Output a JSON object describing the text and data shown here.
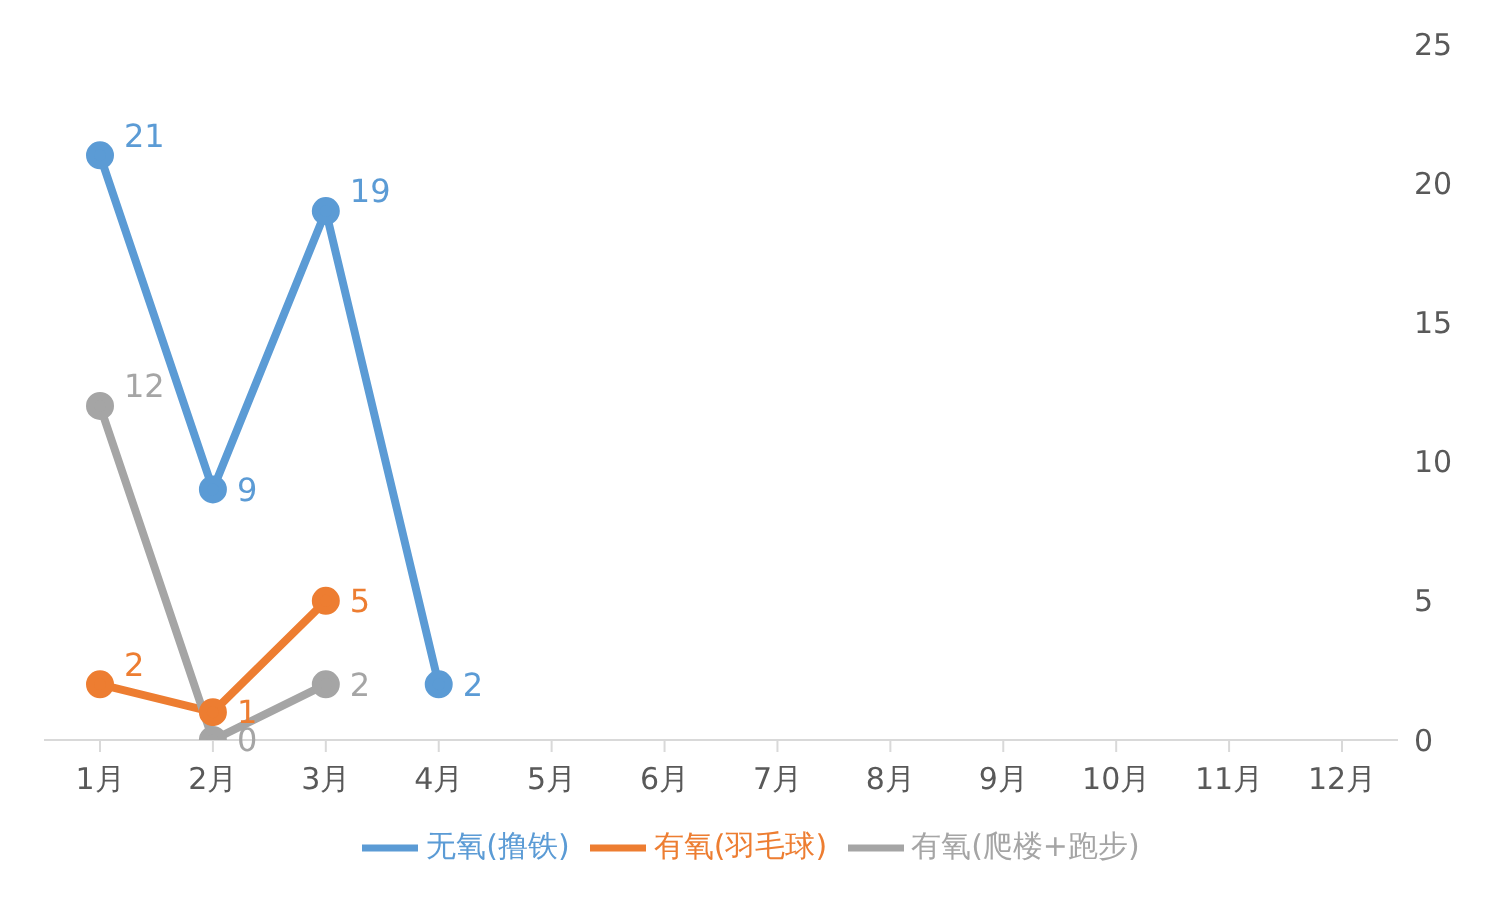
{
  "chart_data": {
    "type": "line",
    "categories": [
      "1月",
      "2月",
      "3月",
      "4月",
      "5月",
      "6月",
      "7月",
      "8月",
      "9月",
      "10月",
      "11月",
      "12月"
    ],
    "series": [
      {
        "name": "无氧(撸铁)",
        "color": "#5b9bd5",
        "values": [
          21,
          9,
          19,
          2,
          null,
          null,
          null,
          null,
          null,
          null,
          null,
          null
        ]
      },
      {
        "name": "有氧(羽毛球)",
        "color": "#ed7d31",
        "values": [
          2,
          1,
          5,
          null,
          null,
          null,
          null,
          null,
          null,
          null,
          null,
          null
        ]
      },
      {
        "name": "有氧(爬楼+跑步)",
        "color": "#a5a5a5",
        "values": [
          12,
          0,
          2,
          null,
          null,
          null,
          null,
          null,
          null,
          null,
          null,
          null
        ]
      }
    ],
    "ylim": [
      0,
      25
    ],
    "yticks": [
      0,
      5,
      10,
      15,
      20,
      25
    ],
    "grid": false,
    "legend": "bottom",
    "marker": "circle",
    "line_style": "solid",
    "data_labels": true
  }
}
